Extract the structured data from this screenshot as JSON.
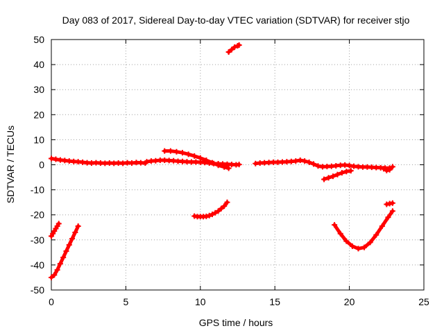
{
  "chart_data": {
    "type": "scatter",
    "title": "Day 083 of 2017, Sidereal Day-to-day VTEC variation (SDTVAR) for receiver stjo",
    "xlabel": "GPS time / hours",
    "ylabel": "SDTVAR / TECUs",
    "xlim": [
      0,
      25
    ],
    "ylim": [
      -50,
      50
    ],
    "xticks": [
      "0",
      "5",
      "10",
      "15",
      "20",
      "25"
    ],
    "yticks": [
      "-50",
      "-40",
      "-30",
      "-20",
      "-10",
      "0",
      "10",
      "20",
      "30",
      "40",
      "50"
    ],
    "grid": true,
    "marker": "+",
    "series_color": "#ff0000",
    "series": [
      {
        "x": [
          0.0,
          0.3,
          0.6,
          0.9,
          1.2,
          1.5,
          1.8,
          2.1,
          2.4,
          2.7,
          3.0,
          3.3,
          3.6,
          3.9,
          4.2,
          4.5,
          4.8,
          5.1,
          5.4,
          5.7,
          6.0,
          6.3
        ],
        "y": [
          2.5,
          2.2,
          1.9,
          1.7,
          1.5,
          1.3,
          1.2,
          1.0,
          0.8,
          0.7,
          0.8,
          0.7,
          0.6,
          0.7,
          0.6,
          0.7,
          0.6,
          0.8,
          0.7,
          0.9,
          0.8,
          0.7
        ]
      },
      {
        "x": [
          6.4,
          6.7,
          7.0,
          7.3,
          7.6,
          7.9,
          8.2,
          8.5,
          8.8,
          9.1,
          9.4,
          9.7,
          10.0,
          10.3,
          10.6,
          10.9,
          11.2,
          11.5,
          11.8,
          12.1,
          12.4,
          12.6
        ],
        "y": [
          1.2,
          1.5,
          1.6,
          1.8,
          1.8,
          1.7,
          1.6,
          1.4,
          1.3,
          1.2,
          1.1,
          1.1,
          1.0,
          0.9,
          0.7,
          0.5,
          0.4,
          0.3,
          0.2,
          0.1,
          0.0,
          0.1
        ]
      },
      {
        "x": [
          7.6,
          8.0,
          8.4,
          8.8,
          9.2,
          9.6,
          10.0,
          10.4,
          10.8,
          11.2,
          11.6,
          11.9
        ],
        "y": [
          5.5,
          5.5,
          5.2,
          4.8,
          4.2,
          3.5,
          2.7,
          1.8,
          0.8,
          -0.2,
          -0.9,
          -1.4
        ]
      },
      {
        "x": [
          0.0,
          0.1,
          0.2,
          0.3,
          0.4,
          0.5
        ],
        "y": [
          -28.5,
          -27.5,
          -26.5,
          -25.5,
          -24.5,
          -23.5
        ]
      },
      {
        "x": [
          0.0,
          0.2,
          0.4,
          0.6,
          0.8,
          1.0,
          1.2,
          1.4,
          1.6,
          1.8
        ],
        "y": [
          -45,
          -44,
          -42,
          -39.5,
          -37,
          -34.5,
          -32,
          -29.5,
          -27,
          -24.5
        ]
      },
      {
        "x": [
          9.6,
          9.8,
          10.0,
          10.2,
          10.4,
          10.6,
          10.8,
          11.0,
          11.2,
          11.4,
          11.6,
          11.8
        ],
        "y": [
          -20.5,
          -20.7,
          -20.7,
          -20.7,
          -20.6,
          -20.3,
          -19.8,
          -19.2,
          -18.5,
          -17.5,
          -16.5,
          -15.0
        ]
      },
      {
        "x": [
          11.9,
          12.1,
          12.3,
          12.5,
          12.6
        ],
        "y": [
          45.0,
          46.0,
          47.0,
          47.5,
          47.8
        ]
      },
      {
        "x": [
          13.7,
          14.0,
          14.3,
          14.6,
          14.9,
          15.2,
          15.5,
          15.8,
          16.1,
          16.4,
          16.7,
          17.0,
          17.3,
          17.6,
          17.9,
          18.2,
          18.5,
          18.8,
          19.1,
          19.4,
          19.7,
          20.0,
          20.3,
          20.6,
          20.9,
          21.2,
          21.5,
          21.8,
          22.1,
          22.4,
          22.7
        ],
        "y": [
          0.5,
          0.7,
          0.8,
          0.9,
          1.0,
          1.0,
          1.1,
          1.2,
          1.3,
          1.5,
          1.8,
          1.5,
          1.0,
          0.3,
          -0.5,
          -0.8,
          -0.7,
          -0.6,
          -0.4,
          -0.2,
          -0.1,
          -0.3,
          -0.6,
          -0.8,
          -0.9,
          -0.9,
          -1.0,
          -1.1,
          -1.2,
          -1.3,
          -1.3
        ]
      },
      {
        "x": [
          18.3,
          18.6,
          18.9,
          19.2,
          19.5,
          19.8,
          20.1
        ],
        "y": [
          -5.8,
          -5.2,
          -4.6,
          -3.9,
          -3.2,
          -2.7,
          -2.4
        ]
      },
      {
        "x": [
          22.3,
          22.5,
          22.7,
          22.9
        ],
        "y": [
          -1.6,
          -2.3,
          -2.0,
          -0.8
        ]
      },
      {
        "x": [
          19.0,
          19.4,
          19.8,
          20.2,
          20.6,
          21.0,
          21.4,
          21.8,
          22.2,
          22.6,
          22.9
        ],
        "y": [
          -24.0,
          -27.5,
          -30.5,
          -32.5,
          -33.5,
          -33.0,
          -31.0,
          -28.0,
          -24.5,
          -21.0,
          -18.5
        ]
      },
      {
        "x": [
          22.5,
          22.7,
          22.9
        ],
        "y": [
          -15.8,
          -15.5,
          -15.3
        ]
      }
    ]
  }
}
